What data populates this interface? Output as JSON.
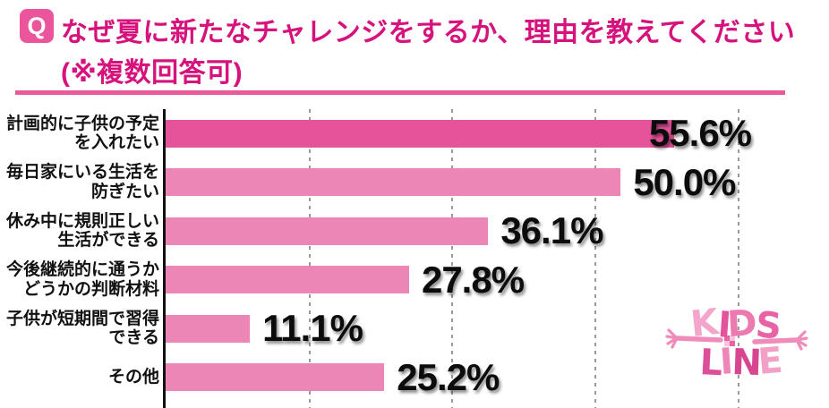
{
  "header": {
    "badge": "Q",
    "title_line1": "なぜ夏に新たなチャレンジをするか、理由を教えてください",
    "title_line2": "(※複数回答可)"
  },
  "chart_data": {
    "type": "bar",
    "orientation": "horizontal",
    "title": "なぜ夏に新たなチャレンジをするか、理由を教えてください(※複数回答可)",
    "categories": [
      "計画的に子供の予定を入れたい",
      "毎日家にいる生活を防ぎたい",
      "休み中に規則正しい生活ができる",
      "今後継続的に通うかどうかの判断材料",
      "子供が短期間で習得できる",
      "その他"
    ],
    "category_lines": [
      [
        "計画的に子供の予定",
        "を入れたい"
      ],
      [
        "毎日家にいる生活を",
        "防ぎたい"
      ],
      [
        "休み中に規則正しい",
        "生活ができる"
      ],
      [
        "今後継続的に通うか",
        "どうかの判断材料"
      ],
      [
        "子供が短期間で習得",
        "できる"
      ],
      [
        "その他"
      ]
    ],
    "values": [
      55.6,
      50.0,
      36.1,
      27.8,
      11.1,
      25.2
    ],
    "value_labels": [
      "55.6%",
      "50.0%",
      "36.1%",
      "27.8%",
      "11.1%",
      "25.2%"
    ],
    "unit": "%",
    "xlim": [
      0,
      69.6
    ],
    "gridlines": [
      15,
      30,
      45,
      60
    ],
    "grid_style": "dashed-vertical",
    "legend": null,
    "highlight_index": 0,
    "colors": {
      "bar_highlight": "#e5539a",
      "bar_default": "#ec86b7",
      "title_pink": "#d6127c",
      "divider_pink": "#e85a9c",
      "badge_pink": "#ea559b",
      "value_text": "#0c0c0c",
      "gridline": "#9a9a9a",
      "axis": "#111111"
    }
  },
  "logo": {
    "name": "KIDS LINE",
    "line1": "KIDS",
    "line2": "LINE",
    "letter_colors_line1": [
      "#f3a5cb",
      "#e2539c",
      "#ec7ab0",
      "#e763a6"
    ],
    "letter_colors_line2": [
      "#dd4f98",
      "#ee86b8",
      "#d94690",
      "#f2a0c6"
    ],
    "arm_color": "#ef8cba",
    "checker_dark": "#e763a6",
    "checker_light": "#f7c4dd"
  }
}
